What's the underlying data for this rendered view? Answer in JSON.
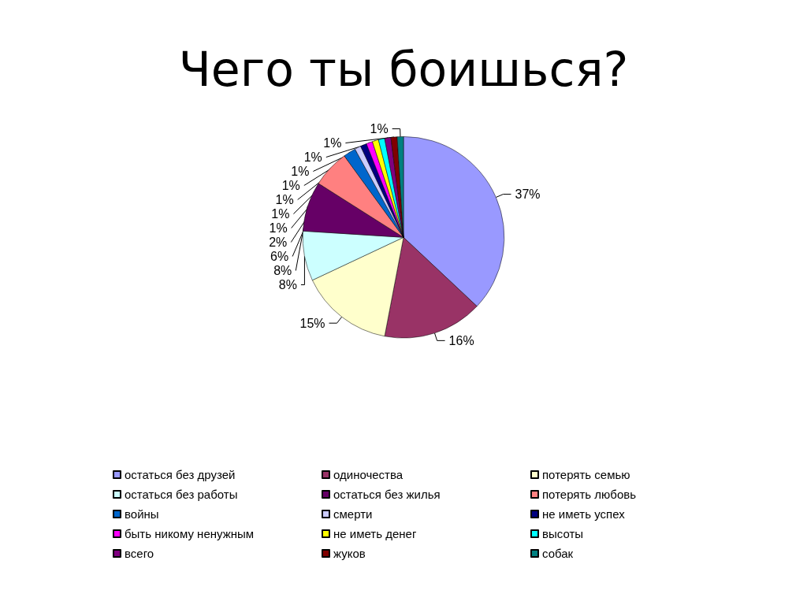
{
  "chart_data": {
    "type": "pie",
    "title": "Чего ты боишься?",
    "categories": [
      "остаться без друзей",
      "одиночества",
      "потерять семью",
      "остаться без работы",
      "остаться без жилья",
      "потерять любовь",
      "войны",
      "смерти",
      "не иметь успех",
      "быть никому ненужным",
      "не иметь денег",
      "высоты",
      "всего",
      "жуков",
      "собак"
    ],
    "values": [
      37,
      16,
      15,
      8,
      8,
      6,
      2,
      1,
      1,
      1,
      1,
      1,
      1,
      1,
      1
    ],
    "value_labels": [
      "37%",
      "16%",
      "15%",
      "8%",
      "8%",
      "6%",
      "2%",
      "1%",
      "1%",
      "1%",
      "1%",
      "1%",
      "1%",
      "1%",
      "1%"
    ],
    "colors": [
      "#9999ff",
      "#993366",
      "#ffffcc",
      "#ccffff",
      "#660066",
      "#ff8080",
      "#0066cc",
      "#ccccff",
      "#000080",
      "#ff00ff",
      "#ffff00",
      "#00ffff",
      "#800080",
      "#800000",
      "#008080"
    ],
    "legend": "bottom"
  }
}
